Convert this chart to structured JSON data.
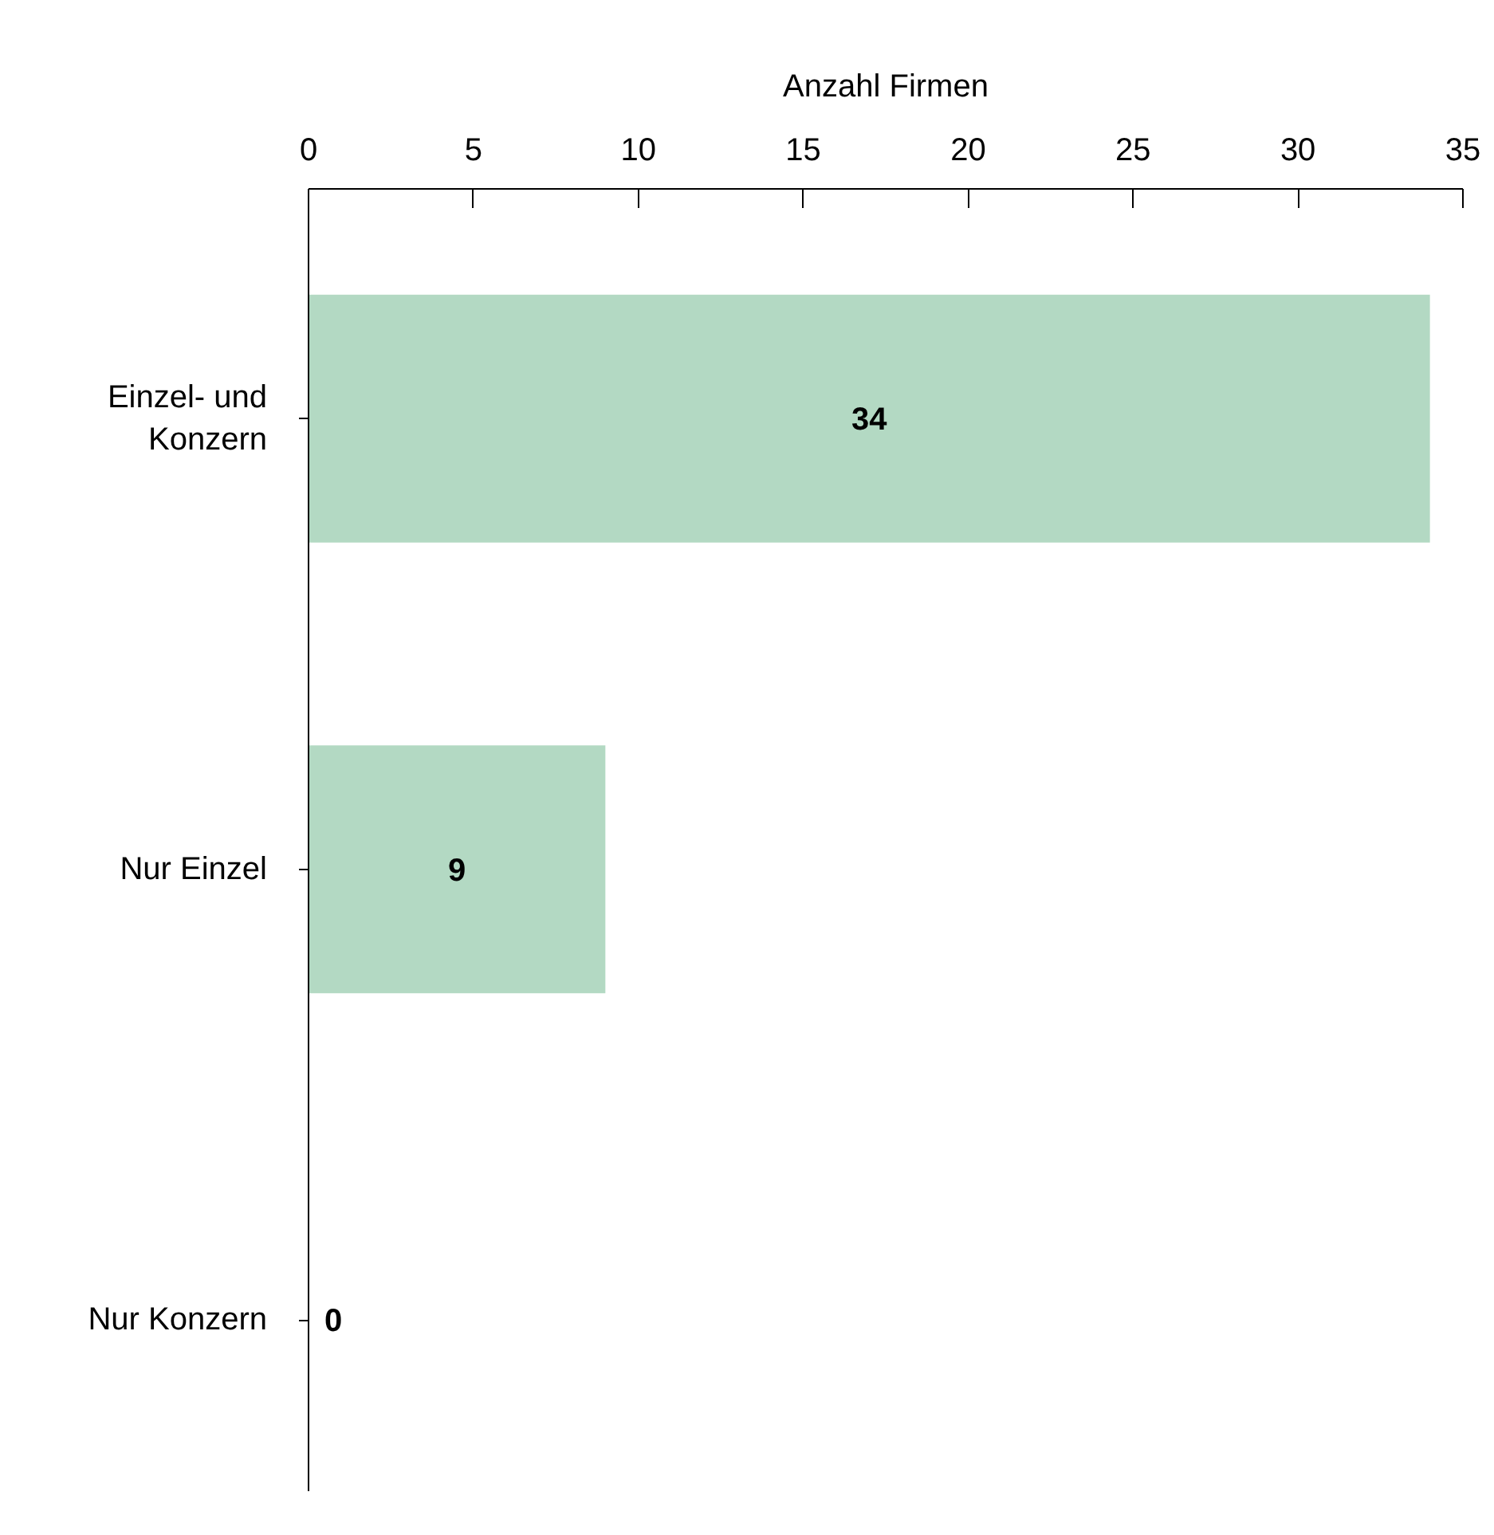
{
  "chart_data": {
    "type": "bar",
    "orientation": "horizontal",
    "xlabel": "Anzahl Firmen",
    "categories": [
      "Einzel- und Konzern",
      "Nur Einzel",
      "Nur Konzern"
    ],
    "values": [
      34,
      9,
      0
    ],
    "color": "#b3d9c3",
    "xlim": [
      0,
      35
    ],
    "xticks": [
      0,
      5,
      10,
      15,
      20,
      25,
      30,
      35
    ],
    "data_labels": true
  }
}
